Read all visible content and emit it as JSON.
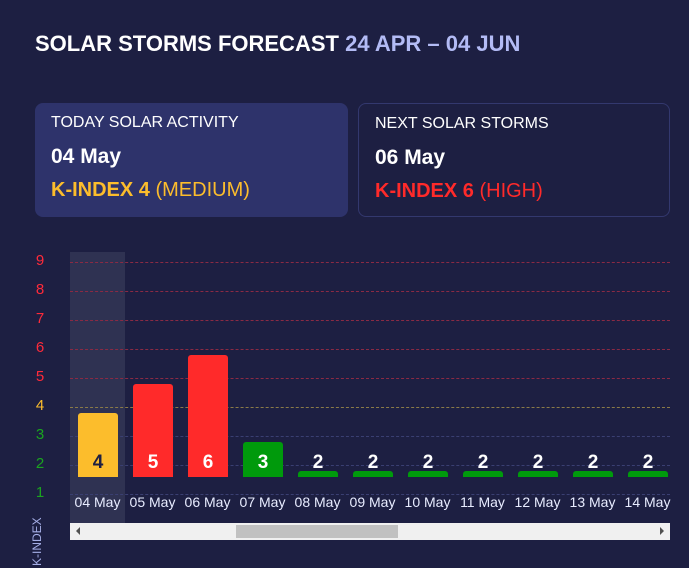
{
  "header": {
    "title": "SOLAR STORMS FORECAST",
    "range": "24 APR – 04 JUN"
  },
  "cards": {
    "today": {
      "label": "TODAY SOLAR ACTIVITY",
      "date": "04 May",
      "k_label": "K-INDEX 4",
      "level": "(MEDIUM)",
      "color": "#fcbd2c"
    },
    "next": {
      "label": "NEXT SOLAR STORMS",
      "date": "06 May",
      "k_label": "K-INDEX 6",
      "level": "(HIGH)",
      "color": "#ff2a2a"
    }
  },
  "colors": {
    "background": "#1d1f42",
    "low": "#009a0c",
    "medium": "#fcbd2c",
    "high": "#ff2a2a",
    "grid_high": "#8a2a44",
    "grid_medium": "#8a7a48",
    "grid_low": "#3a3f72"
  },
  "chart_data": {
    "type": "bar",
    "title": "SOLAR STORMS FORECAST 24 APR – 04 JUN",
    "xlabel": "",
    "ylabel": "K-INDEX",
    "ylim": [
      1,
      9
    ],
    "yticks": [
      "9",
      "8",
      "7",
      "6",
      "5",
      "4",
      "3",
      "2",
      "1"
    ],
    "grid": true,
    "categories": [
      "04 May",
      "05 May",
      "06 May",
      "07 May",
      "08 May",
      "09 May",
      "10 May",
      "11 May",
      "12 May",
      "13 May",
      "14 May"
    ],
    "values": [
      4,
      5,
      6,
      3,
      2,
      2,
      2,
      2,
      2,
      2,
      2
    ],
    "value_labels": [
      "4",
      "5",
      "6",
      "3",
      "2",
      "2",
      "2",
      "2",
      "2",
      "2",
      "2"
    ],
    "highlighted": "04 May",
    "thresholds": {
      "low": "1-3",
      "medium": "4",
      "high": "5-9"
    }
  },
  "scrollbar": {
    "left_arrow": "scroll-left",
    "right_arrow": "scroll-right"
  }
}
